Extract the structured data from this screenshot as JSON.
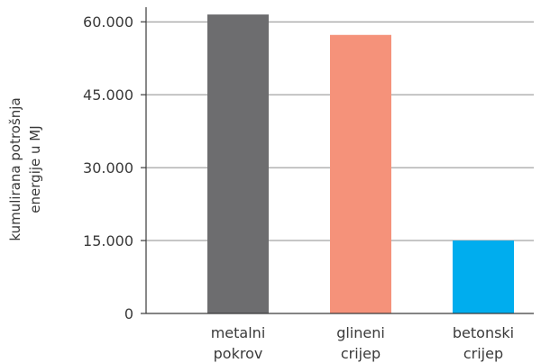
{
  "chart_data": {
    "type": "bar",
    "categories": [
      [
        "metalni",
        "pokrov"
      ],
      [
        "glineni",
        "crijep"
      ],
      [
        "betonski",
        "crijep"
      ]
    ],
    "values": [
      61500,
      57300,
      15000
    ],
    "colors": [
      "#6d6d6f",
      "#f5927a",
      "#00adee"
    ],
    "ylabel_lines": [
      "kumulirana potrošnja",
      "energije u MJ"
    ],
    "yticks": [
      0,
      15000,
      30000,
      45000,
      60000
    ],
    "ytick_labels": [
      "0",
      "15.000",
      "30.000",
      "45.000",
      "60.000"
    ],
    "ylim": [
      0,
      63000
    ],
    "grid": true
  }
}
